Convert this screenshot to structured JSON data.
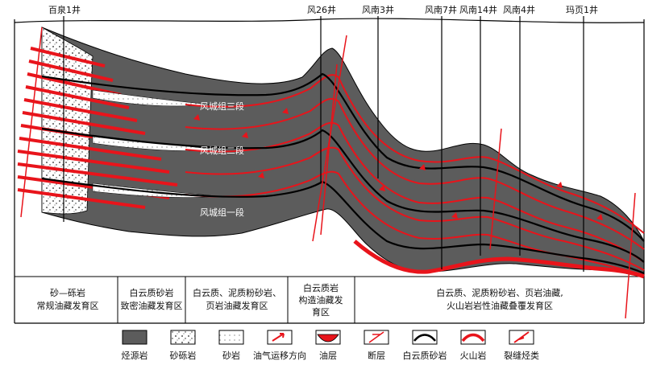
{
  "wells": [
    {
      "name": "百泉1井",
      "depth_end": 276
    },
    {
      "name": "风26井",
      "depth_end": 228
    },
    {
      "name": "风南3井",
      "depth_end": 222
    },
    {
      "name": "风南7井",
      "depth_end": 335
    },
    {
      "name": "风南14井",
      "depth_end": 318
    },
    {
      "name": "风南4井",
      "depth_end": 318
    },
    {
      "name": "玛页1井",
      "depth_end": 338
    }
  ],
  "formations": [
    "风城组三段",
    "风城组二段",
    "风城组一段"
  ],
  "zones": [
    {
      "lines": [
        "砂—砾岩",
        "常规油藏发育区"
      ]
    },
    {
      "lines": [
        "白云质砂岩",
        "致密油藏发育区"
      ]
    },
    {
      "lines": [
        "白云质、泥质粉砂岩、",
        "页岩油藏发育区"
      ]
    },
    {
      "lines": [
        "白云质岩",
        "构造油藏发",
        "育区"
      ]
    },
    {
      "lines": [
        "白云质、泥质粉砂岩、页岩油藏,",
        "火山岩岩性油藏叠覆发育区"
      ]
    }
  ],
  "legend": [
    {
      "name": "烃源岩",
      "icon": "source-rock"
    },
    {
      "name": "砂砾岩",
      "icon": "sandy-conglomerate"
    },
    {
      "name": "砂岩",
      "icon": "sandstone"
    },
    {
      "name": "油气运移方向",
      "icon": "migration-arrow"
    },
    {
      "name": "油层",
      "icon": "oil-layer"
    },
    {
      "name": "断层",
      "icon": "fault"
    },
    {
      "name": "白云质砂岩",
      "icon": "dolomitic-sandstone"
    },
    {
      "name": "火山岩",
      "icon": "volcanic-rock"
    },
    {
      "name": "裂缝烃类",
      "icon": "fracture-hydrocarbon"
    }
  ],
  "colors": {
    "source_rock": "#5c5c5c",
    "oil": "#e8141b",
    "frame": "#000000",
    "sand": "#ffffff"
  }
}
